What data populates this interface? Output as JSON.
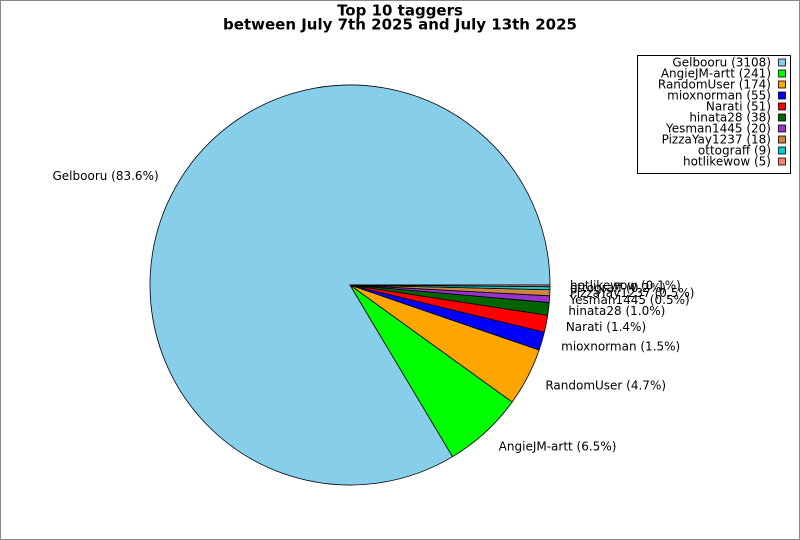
{
  "chart_data": {
    "type": "pie",
    "title": "Top 10 taggers",
    "subtitle": "between July 7th 2025 and July 13th 2025",
    "values": [
      3108,
      241,
      174,
      55,
      51,
      38,
      20,
      18,
      9,
      5
    ],
    "value_labels": [
      "Gelbooru (3108)",
      "AngieJM-artt (241)",
      "RandomUser (174)",
      "mioxnorman (55)",
      "Narati (51)",
      "hinata28 (38)",
      "Yesman1445 (20)",
      "PizzaYay1237 (18)",
      "ottograff (9)",
      "hotlikewow (5)"
    ],
    "slice_labels": [
      "Gelbooru (83.6%)",
      "AngieJM-artt (6.5%)",
      "RandomUser (4.7%)",
      "mioxnorman (1.5%)",
      "Narati (1.4%)",
      "hinata28 (1.0%)",
      "Yesman1445 (0.5%)",
      "PizzaYay1237 (0.5%)",
      "ottograff (0.2%)",
      "hotlikewow (0.1%)"
    ],
    "colors": [
      "#87ceeb",
      "#00ff00",
      "#ffa500",
      "#0000ff",
      "#ff0000",
      "#006400",
      "#9932cc",
      "#cd853f",
      "#00ced1",
      "#fa8072"
    ],
    "legend": "upper right"
  }
}
